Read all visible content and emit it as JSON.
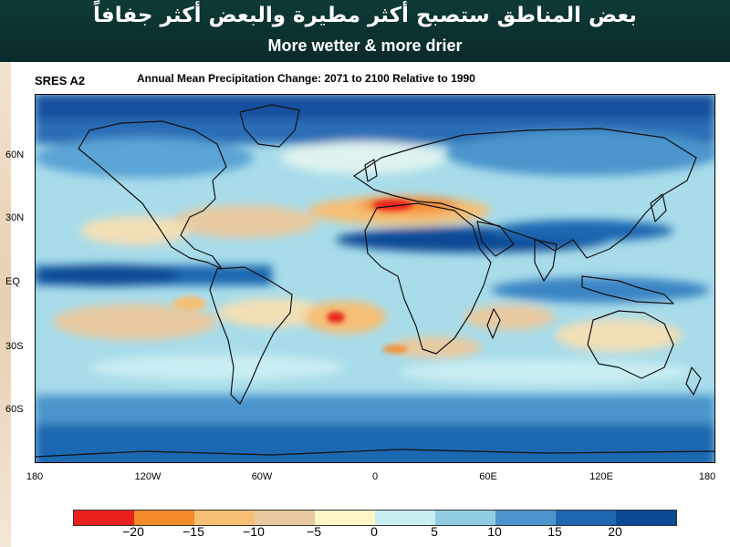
{
  "header": {
    "title_arabic": "بعض المناطق ستصبح أكثر مطيرة والبعض أكثر جفافاً",
    "title_english": "More wetter & more drier"
  },
  "map": {
    "panel_label": "SRES A2",
    "title": "Annual Mean Precipitation Change:  2071 to 2100 Relative to 1990",
    "x_ticks": [
      "180",
      "120W",
      "60W",
      "0",
      "60E",
      "120E",
      "180"
    ],
    "y_ticks": [
      "60N",
      "30N",
      "EQ",
      "30S",
      "60S"
    ]
  },
  "colorbar": {
    "labels": [
      "−20",
      "−15",
      "−10",
      "−5",
      "0",
      "5",
      "10",
      "15",
      "20"
    ],
    "colors": [
      "#e8211f",
      "#f58a2a",
      "#f6bf74",
      "#e8caa0",
      "#fdf7c8",
      "#c9eef2",
      "#90cde3",
      "#4b95cc",
      "#1f67b1",
      "#0b4a94"
    ]
  },
  "colors": {
    "header_bg": "#0e3a36",
    "ocean_light": "#a8dcea",
    "ocean_mid": "#6fb4dc",
    "wet_dark": "#1d5fae",
    "coast": "#111111"
  }
}
